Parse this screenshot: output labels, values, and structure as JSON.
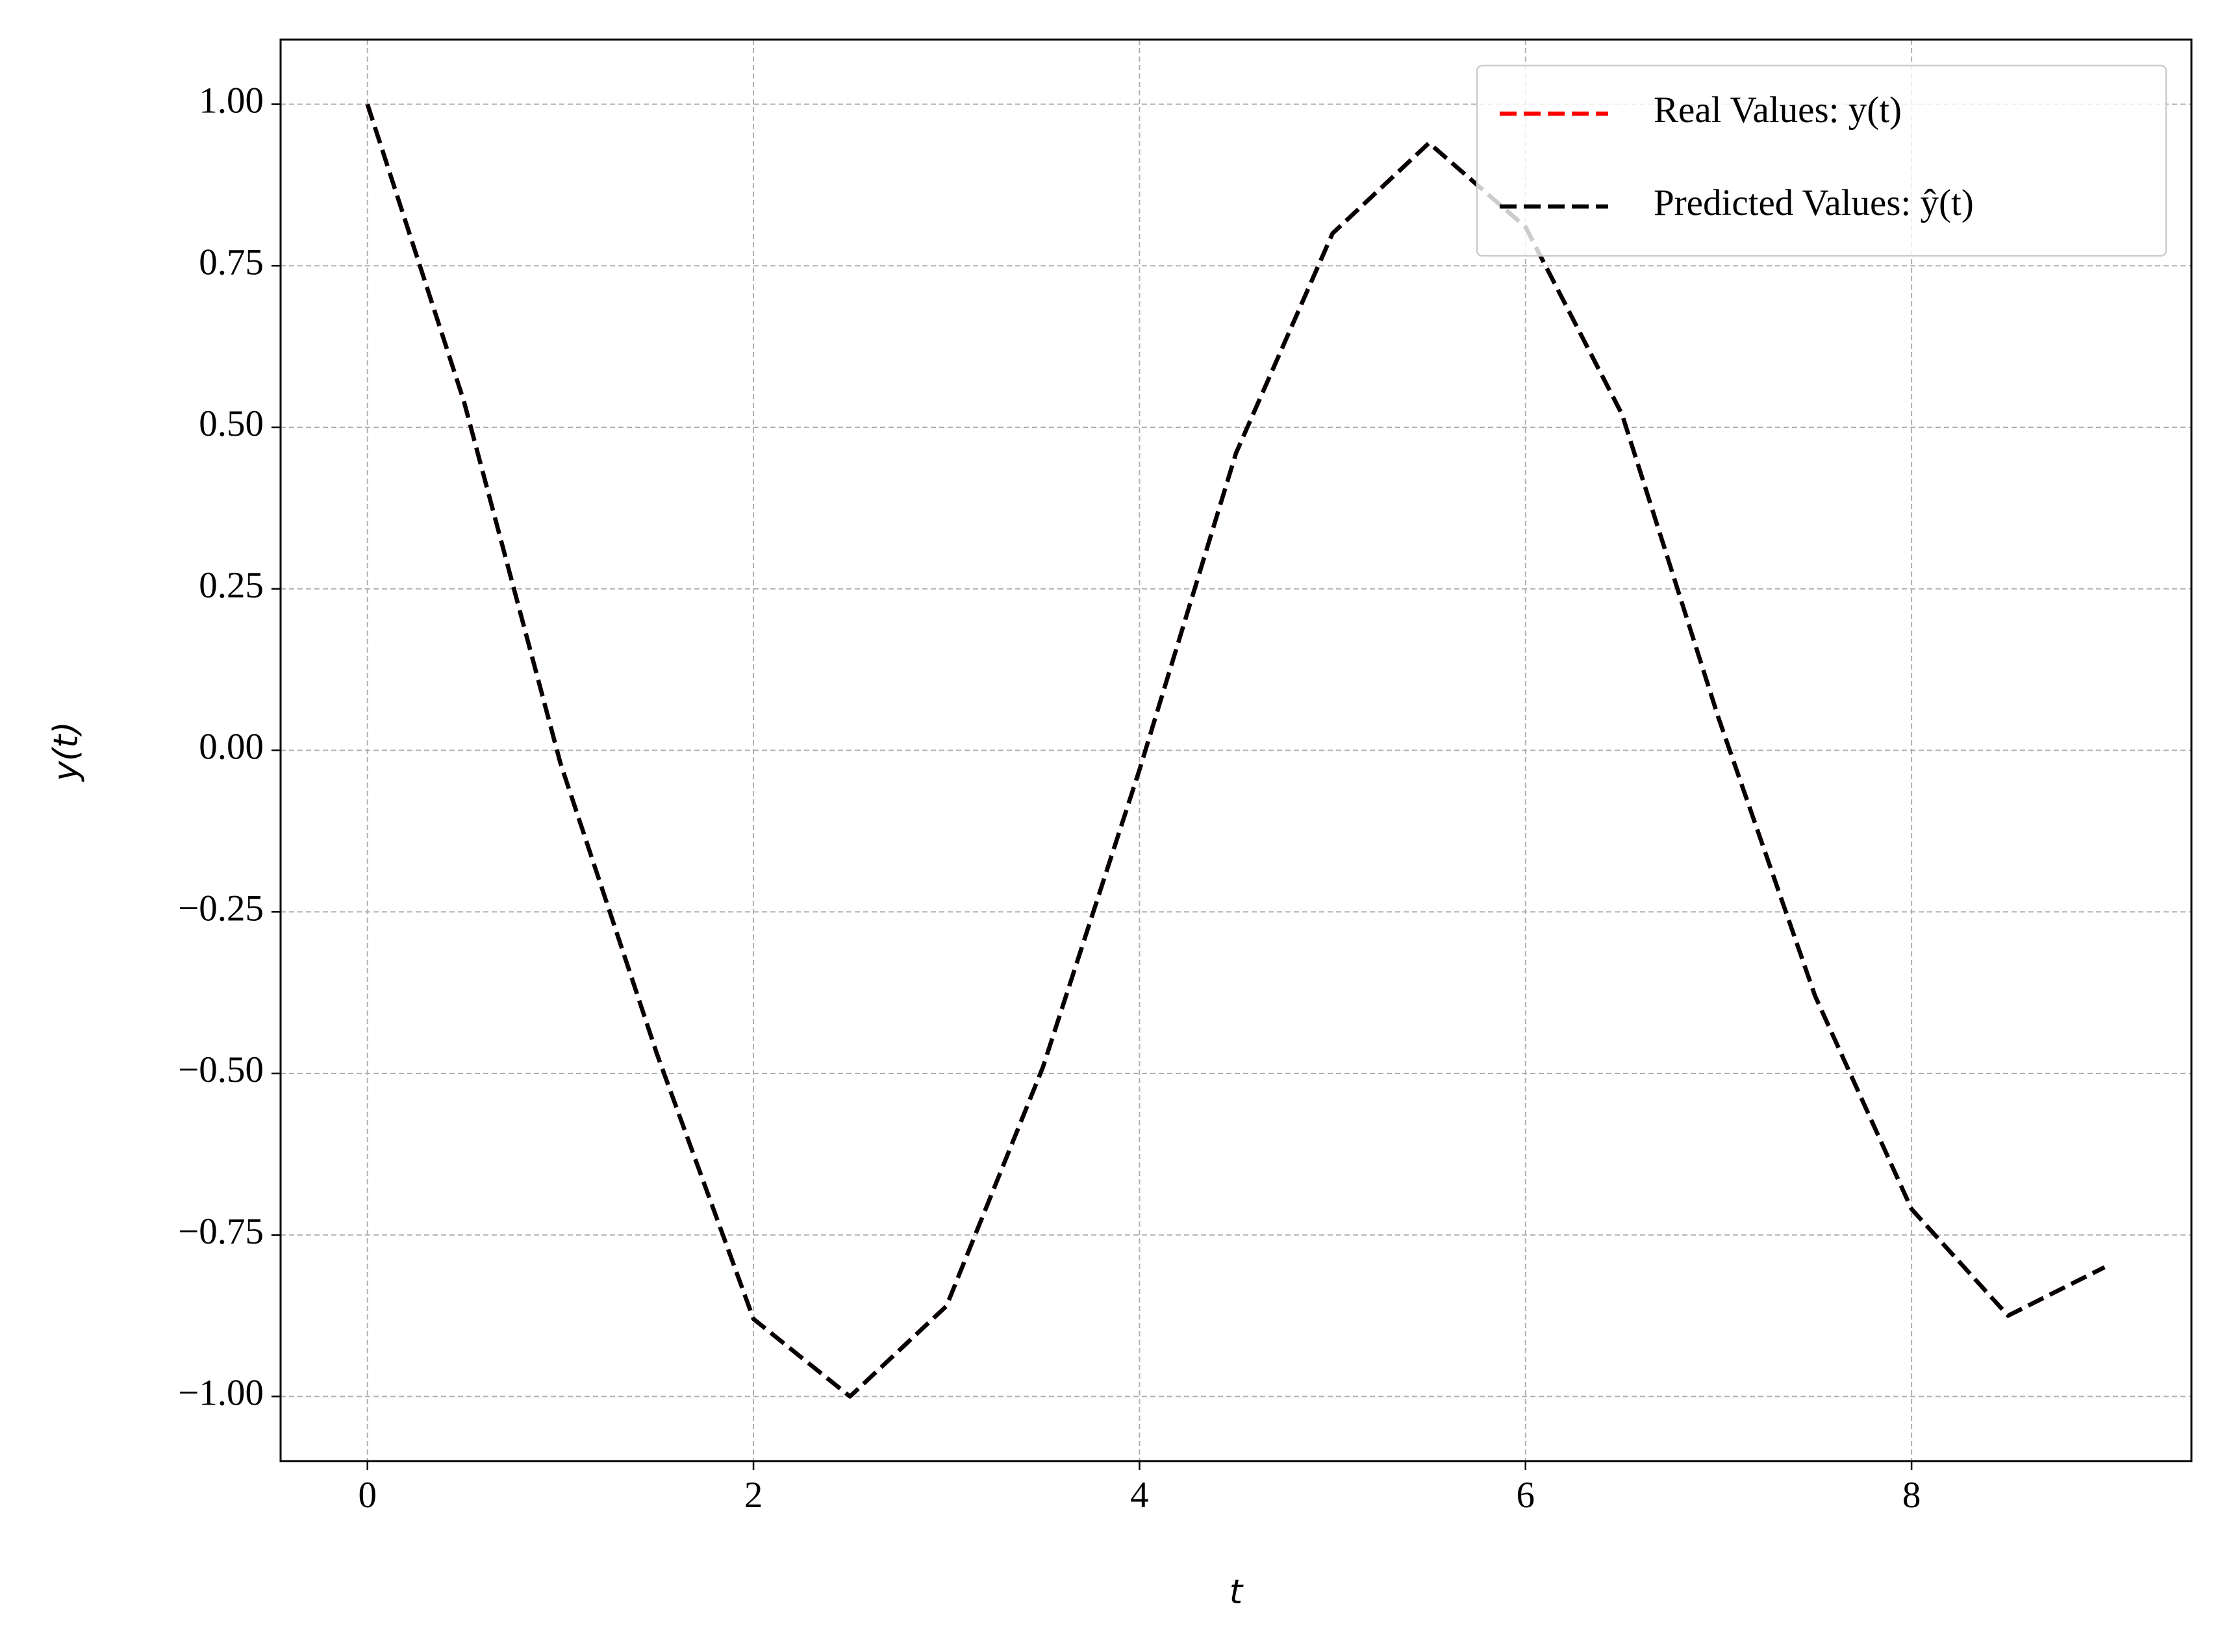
{
  "chart_data": {
    "type": "line",
    "x_label": "t",
    "y_label": "y(t)",
    "x": [
      0,
      0.5,
      1,
      1.5,
      2,
      2.5,
      3,
      3.5,
      4,
      4.5,
      5,
      5.5,
      6,
      6.5,
      7,
      7.5,
      8,
      8.5,
      9
    ],
    "series": [
      {
        "name": "Real Values: y(t)",
        "color": "#ff0000",
        "values": [
          1.0,
          0.54,
          -0.02,
          -0.47,
          -0.88,
          -1.0,
          -0.86,
          -0.49,
          -0.03,
          0.46,
          0.8,
          0.94,
          0.81,
          0.52,
          0.05,
          -0.38,
          -0.71,
          -0.875,
          -0.8
        ]
      },
      {
        "name": "Predicted Values: ŷ(t)",
        "color": "#000000",
        "values": [
          1.0,
          0.54,
          -0.02,
          -0.47,
          -0.88,
          -1.0,
          -0.86,
          -0.49,
          -0.03,
          0.46,
          0.8,
          0.94,
          0.81,
          0.52,
          0.05,
          -0.38,
          -0.71,
          -0.875,
          -0.8
        ]
      }
    ],
    "xlim": [
      -0.45,
      9.45
    ],
    "ylim": [
      -1.1,
      1.1
    ],
    "xticks": [
      0,
      2,
      4,
      6,
      8
    ],
    "yticks": [
      {
        "value": 1,
        "label": "1.00"
      },
      {
        "value": 0.75,
        "label": "0.75"
      },
      {
        "value": 0.5,
        "label": "0.50"
      },
      {
        "value": 0.25,
        "label": "0.25"
      },
      {
        "value": 0,
        "label": "0.00"
      },
      {
        "value": -0.25,
        "label": "−0.25"
      },
      {
        "value": -0.5,
        "label": "−0.50"
      },
      {
        "value": -0.75,
        "label": "−0.75"
      },
      {
        "value": -1,
        "label": "−1.00"
      }
    ],
    "grid": true,
    "line_style": "dashed",
    "legend": "upper-right"
  }
}
